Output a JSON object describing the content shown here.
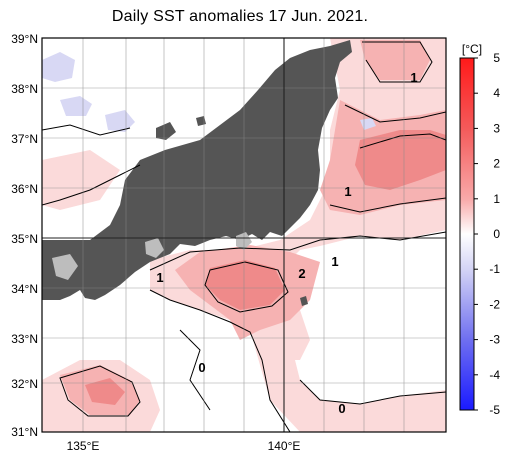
{
  "title": "Daily SST anomalies 17 Jun. 2021.",
  "latitudes": [
    "39°N",
    "38°N",
    "37°N",
    "36°N",
    "35°N",
    "34°N",
    "33°N",
    "32°N",
    "31°N"
  ],
  "longitudes": [
    "135°E",
    "140°E"
  ],
  "colorbar": {
    "unit": "[°C]",
    "ticks": [
      "5",
      "4",
      "3",
      "2",
      "1",
      "0",
      "-1",
      "-2",
      "-3",
      "-4",
      "-5"
    ],
    "colors": {
      "strong_positive": "#ff2020",
      "positive": "#f6a7a7",
      "weak_positive": "#fbd9d9",
      "neutral": "#ffffff",
      "weak_negative": "#dcdcf6",
      "strong_negative": "#2020ff"
    }
  },
  "contour_labels": [
    "1",
    "1",
    "1",
    "1",
    "2",
    "0",
    "0"
  ],
  "map": {
    "land_color": "#555555",
    "lake_color": "#bdbdbd",
    "grid": true
  }
}
